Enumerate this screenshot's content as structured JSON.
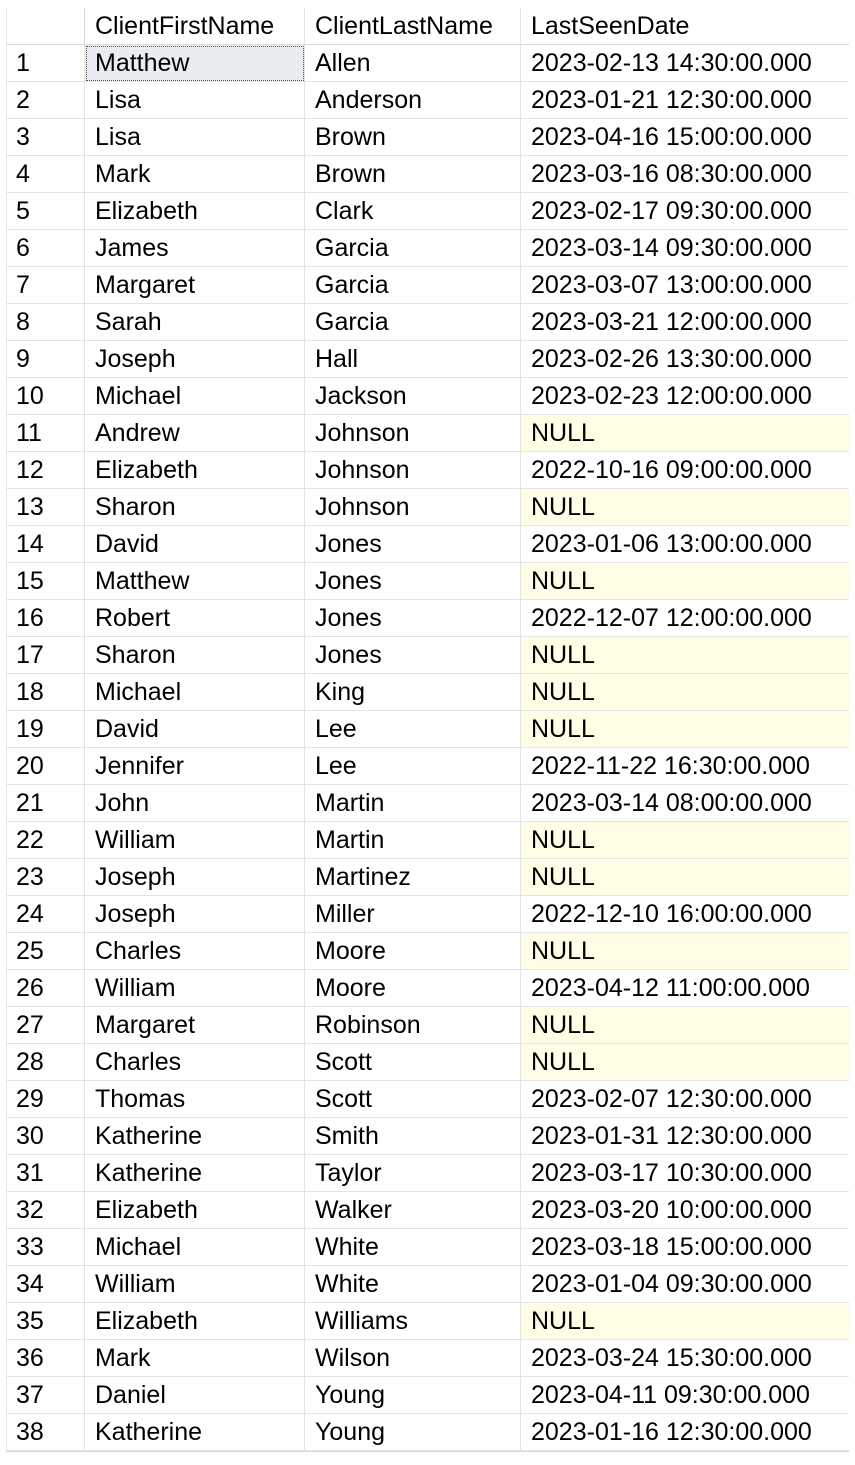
{
  "columns": [
    "",
    "ClientFirstName",
    "ClientLastName",
    "LastSeenDate"
  ],
  "rows": [
    {
      "n": "1",
      "first": "Matthew",
      "last": "Allen",
      "date": "2023-02-13 14:30:00.000"
    },
    {
      "n": "2",
      "first": "Lisa",
      "last": "Anderson",
      "date": "2023-01-21 12:30:00.000"
    },
    {
      "n": "3",
      "first": "Lisa",
      "last": "Brown",
      "date": "2023-04-16 15:00:00.000"
    },
    {
      "n": "4",
      "first": "Mark",
      "last": "Brown",
      "date": "2023-03-16 08:30:00.000"
    },
    {
      "n": "5",
      "first": "Elizabeth",
      "last": "Clark",
      "date": "2023-02-17 09:30:00.000"
    },
    {
      "n": "6",
      "first": "James",
      "last": "Garcia",
      "date": "2023-03-14 09:30:00.000"
    },
    {
      "n": "7",
      "first": "Margaret",
      "last": "Garcia",
      "date": "2023-03-07 13:00:00.000"
    },
    {
      "n": "8",
      "first": "Sarah",
      "last": "Garcia",
      "date": "2023-03-21 12:00:00.000"
    },
    {
      "n": "9",
      "first": "Joseph",
      "last": "Hall",
      "date": "2023-02-26 13:30:00.000"
    },
    {
      "n": "10",
      "first": "Michael",
      "last": "Jackson",
      "date": "2023-02-23 12:00:00.000"
    },
    {
      "n": "11",
      "first": "Andrew",
      "last": "Johnson",
      "date": "NULL"
    },
    {
      "n": "12",
      "first": "Elizabeth",
      "last": "Johnson",
      "date": "2022-10-16 09:00:00.000"
    },
    {
      "n": "13",
      "first": "Sharon",
      "last": "Johnson",
      "date": "NULL"
    },
    {
      "n": "14",
      "first": "David",
      "last": "Jones",
      "date": "2023-01-06 13:00:00.000"
    },
    {
      "n": "15",
      "first": "Matthew",
      "last": "Jones",
      "date": "NULL"
    },
    {
      "n": "16",
      "first": "Robert",
      "last": "Jones",
      "date": "2022-12-07 12:00:00.000"
    },
    {
      "n": "17",
      "first": "Sharon",
      "last": "Jones",
      "date": "NULL"
    },
    {
      "n": "18",
      "first": "Michael",
      "last": "King",
      "date": "NULL"
    },
    {
      "n": "19",
      "first": "David",
      "last": "Lee",
      "date": "NULL"
    },
    {
      "n": "20",
      "first": "Jennifer",
      "last": "Lee",
      "date": "2022-11-22 16:30:00.000"
    },
    {
      "n": "21",
      "first": "John",
      "last": "Martin",
      "date": "2023-03-14 08:00:00.000"
    },
    {
      "n": "22",
      "first": "William",
      "last": "Martin",
      "date": "NULL"
    },
    {
      "n": "23",
      "first": "Joseph",
      "last": "Martinez",
      "date": "NULL"
    },
    {
      "n": "24",
      "first": "Joseph",
      "last": "Miller",
      "date": "2022-12-10 16:00:00.000"
    },
    {
      "n": "25",
      "first": "Charles",
      "last": "Moore",
      "date": "NULL"
    },
    {
      "n": "26",
      "first": "William",
      "last": "Moore",
      "date": "2023-04-12 11:00:00.000"
    },
    {
      "n": "27",
      "first": "Margaret",
      "last": "Robinson",
      "date": "NULL"
    },
    {
      "n": "28",
      "first": "Charles",
      "last": "Scott",
      "date": "NULL"
    },
    {
      "n": "29",
      "first": "Thomas",
      "last": "Scott",
      "date": "2023-02-07 12:30:00.000"
    },
    {
      "n": "30",
      "first": "Katherine",
      "last": "Smith",
      "date": "2023-01-31 12:30:00.000"
    },
    {
      "n": "31",
      "first": "Katherine",
      "last": "Taylor",
      "date": "2023-03-17 10:30:00.000"
    },
    {
      "n": "32",
      "first": "Elizabeth",
      "last": "Walker",
      "date": "2023-03-20 10:00:00.000"
    },
    {
      "n": "33",
      "first": "Michael",
      "last": "White",
      "date": "2023-03-18 15:00:00.000"
    },
    {
      "n": "34",
      "first": "William",
      "last": "White",
      "date": "2023-01-04 09:30:00.000"
    },
    {
      "n": "35",
      "first": "Elizabeth",
      "last": "Williams",
      "date": "NULL"
    },
    {
      "n": "36",
      "first": "Mark",
      "last": "Wilson",
      "date": "2023-03-24 15:30:00.000"
    },
    {
      "n": "37",
      "first": "Daniel",
      "last": "Young",
      "date": "2023-04-11 09:30:00.000"
    },
    {
      "n": "38",
      "first": "Katherine",
      "last": "Young",
      "date": "2023-01-16 12:30:00.000"
    }
  ],
  "null_color": "#fffde6",
  "selected_color": "#e9edf2"
}
